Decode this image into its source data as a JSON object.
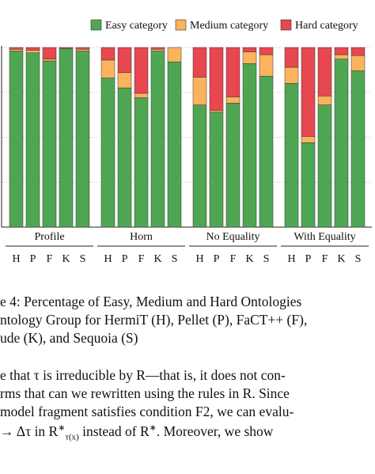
{
  "chart_data": {
    "type": "bar",
    "stacked": true,
    "groups": [
      "Profile",
      "Horn",
      "No Equality",
      "With Equality"
    ],
    "categories": [
      "H",
      "P",
      "F",
      "K",
      "S"
    ],
    "ylim": [
      0,
      100
    ],
    "yticks": [
      0,
      25,
      50,
      75,
      100
    ],
    "grid": true,
    "series": [
      {
        "name": "Easy category",
        "color": "#4fa652",
        "values": [
          [
            98,
            97,
            92.5,
            99.5,
            98
          ],
          [
            83,
            77.5,
            72,
            98,
            92
          ],
          [
            68,
            64,
            69,
            91,
            84
          ],
          [
            80,
            47,
            68,
            93.5,
            87
          ]
        ]
      },
      {
        "name": "Medium category",
        "color": "#fbb35e",
        "values": [
          [
            1,
            1.5,
            1,
            0,
            1
          ],
          [
            10,
            8.5,
            2.5,
            1,
            8
          ],
          [
            15.5,
            1,
            3.5,
            6.5,
            12
          ],
          [
            9,
            3.5,
            5,
            2.5,
            8.5
          ]
        ]
      },
      {
        "name": "Hard category",
        "color": "#e7474f",
        "values": [
          [
            1,
            1.5,
            6.5,
            0.5,
            1
          ],
          [
            7,
            14,
            25.5,
            1,
            0
          ],
          [
            16.5,
            35,
            27.5,
            2.5,
            4
          ],
          [
            11,
            49.5,
            27,
            4,
            4.5
          ]
        ]
      }
    ]
  },
  "caption": [
    "e 4: Percentage of Easy, Medium and Hard Ontologies",
    "ntology Group for HermiT (H), Pellet (P), FaCT++ (F),",
    "ude (K), and Sequoia (S)"
  ],
  "body": {
    "lines": [
      "e that τ is irreducible by R—that is, it does not con-",
      "rms that can we rewritten using the rules in R. Since",
      "model fragment satisfies condition F2, we can evalu-"
    ],
    "line4": {
      "a": "→ Δτ in R",
      "sup": "∗",
      "sub": "τ(x)",
      "b": " instead of R",
      "sup2": "∗",
      "c": ". Moreover, we show"
    }
  }
}
